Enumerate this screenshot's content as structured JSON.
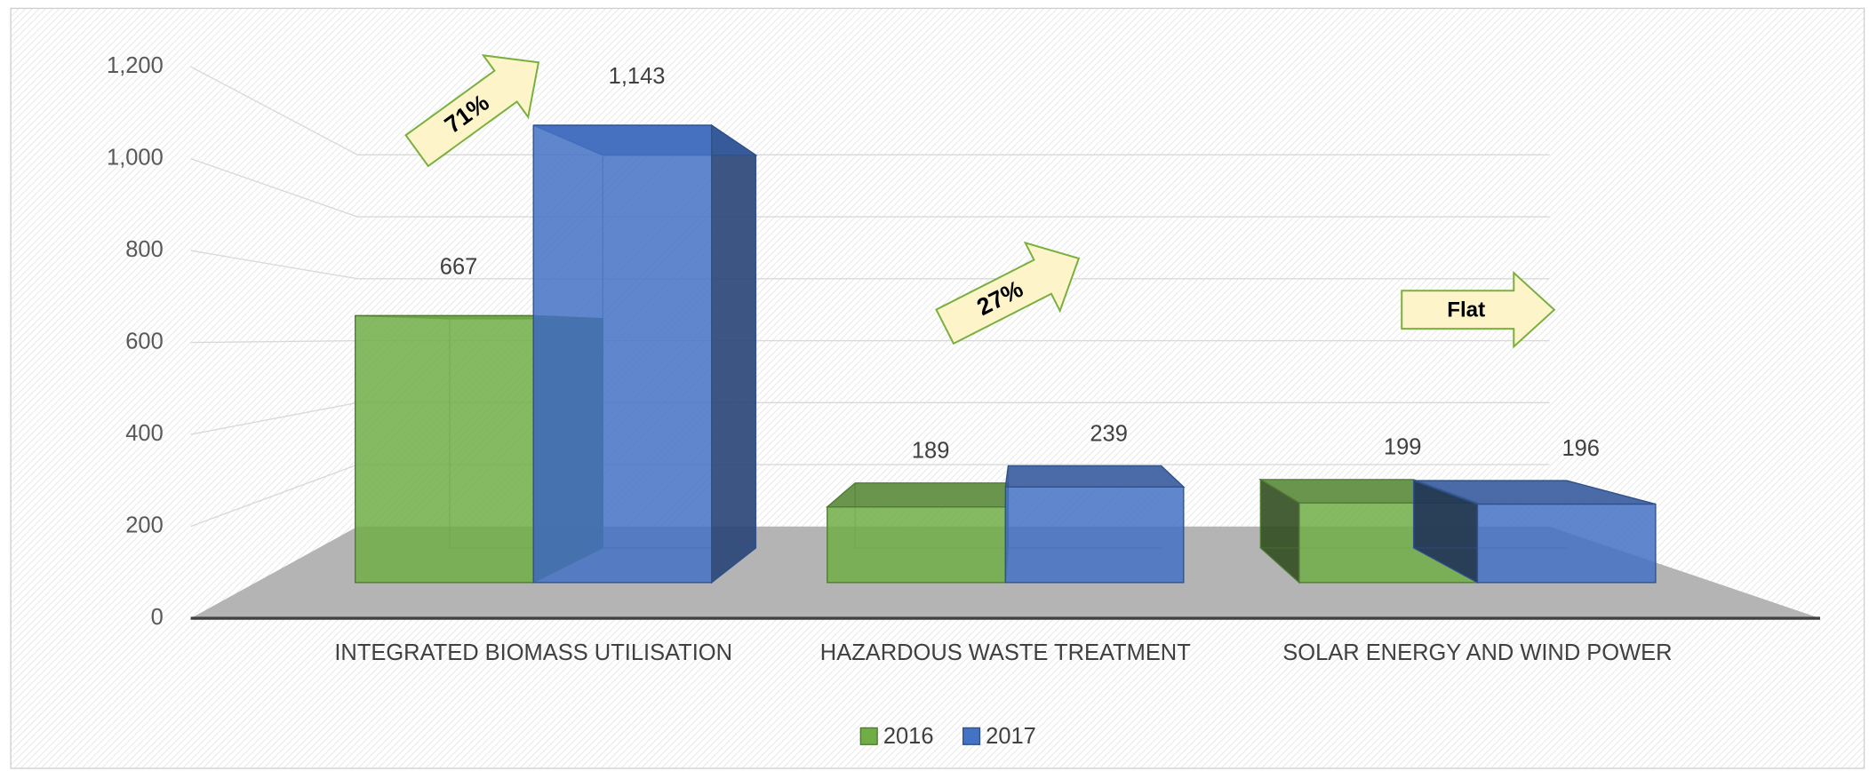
{
  "chart_data": {
    "type": "bar3d",
    "categories": [
      "INTEGRATED BIOMASS UTILISATION",
      "HAZARDOUS WASTE TREATMENT",
      "SOLAR ENERGY AND WIND POWER"
    ],
    "series": [
      {
        "name": "2016",
        "color": "#70ad47",
        "values": [
          667,
          189,
          199
        ]
      },
      {
        "name": "2017",
        "color": "#4472c4",
        "values": [
          1143,
          239,
          196
        ],
        "value_labels": [
          "1,143",
          "239",
          "196"
        ]
      }
    ],
    "ylim": [
      0,
      1200
    ],
    "yticks": [
      0,
      200,
      400,
      600,
      800,
      {
        "value": 1000,
        "label": "1,000"
      },
      {
        "value": 1200,
        "label": "1,200"
      }
    ],
    "grid": true,
    "legend": "bottom",
    "annotations": [
      "71%",
      "27%",
      "Flat"
    ]
  }
}
